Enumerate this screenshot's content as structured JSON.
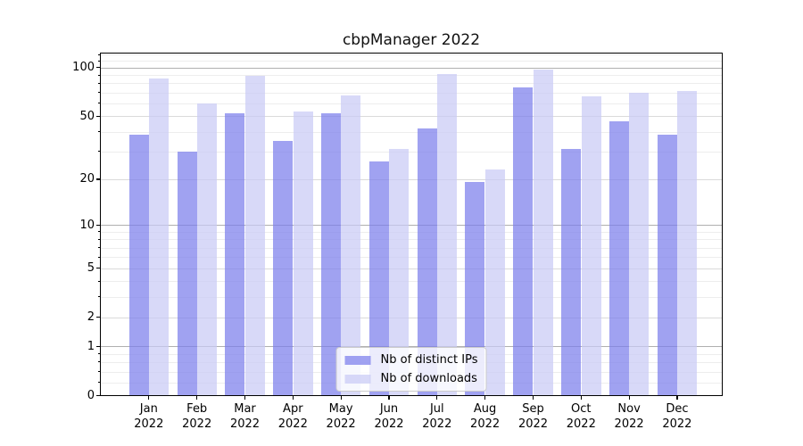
{
  "chart_data": {
    "type": "bar",
    "title": "cbpManager 2022",
    "categories": [
      {
        "month": "Jan",
        "year": "2022"
      },
      {
        "month": "Feb",
        "year": "2022"
      },
      {
        "month": "Mar",
        "year": "2022"
      },
      {
        "month": "Apr",
        "year": "2022"
      },
      {
        "month": "May",
        "year": "2022"
      },
      {
        "month": "Jun",
        "year": "2022"
      },
      {
        "month": "Jul",
        "year": "2022"
      },
      {
        "month": "Aug",
        "year": "2022"
      },
      {
        "month": "Sep",
        "year": "2022"
      },
      {
        "month": "Oct",
        "year": "2022"
      },
      {
        "month": "Nov",
        "year": "2022"
      },
      {
        "month": "Dec",
        "year": "2022"
      }
    ],
    "series": [
      {
        "name": "Nb of distinct IPs",
        "color": "#7b7eeb",
        "alpha": 0.72,
        "values": [
          38,
          30,
          52,
          35,
          52,
          26,
          42,
          19,
          75,
          31,
          46,
          38
        ]
      },
      {
        "name": "Nb of downloads",
        "color": "#c9caf5",
        "alpha": 0.72,
        "values": [
          85,
          60,
          89,
          53,
          67,
          31,
          91,
          23,
          97,
          66,
          70,
          71
        ]
      }
    ],
    "yscale": "log1p",
    "yticks": [
      100,
      50,
      20,
      10,
      5,
      2,
      1,
      0
    ],
    "ylim": [
      0,
      122
    ],
    "xlabel": "",
    "ylabel": "",
    "grid": true,
    "legend": {
      "position": "lower center"
    }
  }
}
